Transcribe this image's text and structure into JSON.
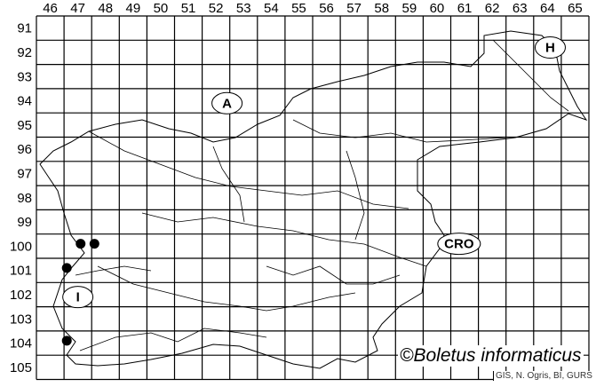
{
  "map": {
    "columns": [
      "46",
      "47",
      "48",
      "49",
      "50",
      "51",
      "52",
      "53",
      "54",
      "55",
      "56",
      "57",
      "58",
      "59",
      "60",
      "61",
      "62",
      "63",
      "64",
      "65"
    ],
    "rows": [
      "91",
      "92",
      "93",
      "94",
      "95",
      "96",
      "97",
      "98",
      "99",
      "100",
      "101",
      "102",
      "103",
      "104",
      "105"
    ],
    "countries": [
      {
        "label": "A",
        "col": 52.9,
        "row": 94.6
      },
      {
        "label": "H",
        "col": 64.6,
        "row": 92.3
      },
      {
        "label": "CRO",
        "col": 61.3,
        "row": 100.4
      },
      {
        "label": "I",
        "col": 47.5,
        "row": 102.6
      }
    ],
    "records": [
      {
        "col": 47.6,
        "row": 100.4
      },
      {
        "col": 48.1,
        "row": 100.4
      },
      {
        "col": 47.1,
        "row": 101.4
      },
      {
        "col": 47.1,
        "row": 104.4
      }
    ],
    "dot_color": "#000000"
  },
  "copyright": "©Boletus informaticus",
  "credit": "GIS, N. Ogris, BI, GURS"
}
